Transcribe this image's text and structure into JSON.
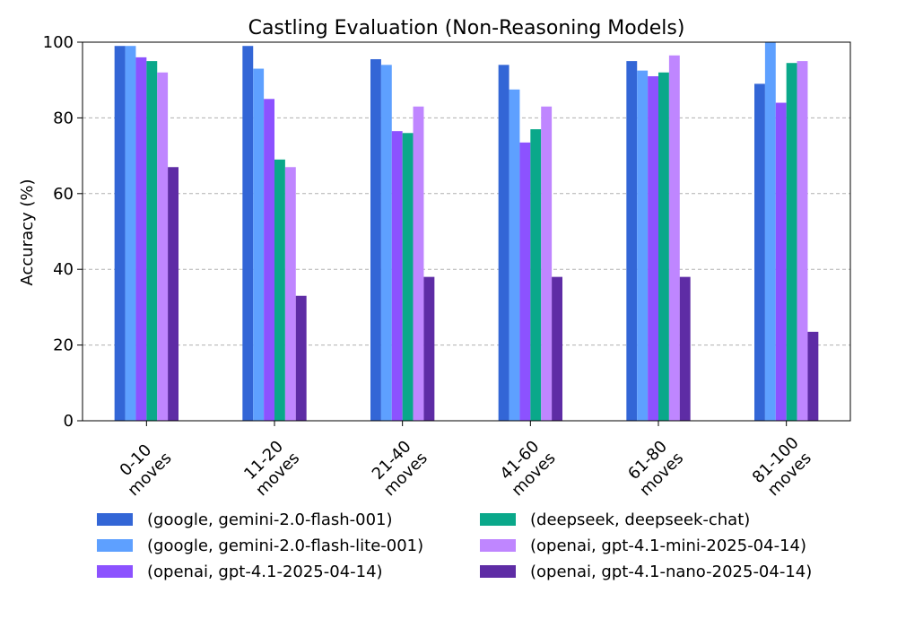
{
  "chart_data": {
    "type": "bar",
    "title": "Castling Evaluation (Non-Reasoning Models)",
    "xlabel": "",
    "ylabel": "Accuracy (%)",
    "ylim": [
      0,
      100
    ],
    "yticks": [
      0,
      20,
      40,
      60,
      80,
      100
    ],
    "grid": "y-dashed",
    "legend_position": "bottom",
    "categories": [
      [
        "0-10",
        "moves"
      ],
      [
        "11-20",
        "moves"
      ],
      [
        "21-40",
        "moves"
      ],
      [
        "41-60",
        "moves"
      ],
      [
        "61-80",
        "moves"
      ],
      [
        "81-100",
        "moves"
      ]
    ],
    "series": [
      {
        "name": "(google, gemini-2.0-flash-001)",
        "color": "#3366d6",
        "values": [
          99,
          99,
          95.5,
          94,
          95,
          89
        ]
      },
      {
        "name": "(google, gemini-2.0-flash-lite-001)",
        "color": "#5ea0ff",
        "values": [
          99,
          93,
          94,
          87.5,
          92.5,
          100
        ]
      },
      {
        "name": "(openai, gpt-4.1-2025-04-14)",
        "color": "#8c52ff",
        "values": [
          96,
          85,
          76.5,
          73.5,
          91,
          84
        ]
      },
      {
        "name": "(deepseek, deepseek-chat)",
        "color": "#0aa88a",
        "values": [
          95,
          69,
          76,
          77,
          92,
          94.5
        ]
      },
      {
        "name": "(openai, gpt-4.1-mini-2025-04-14)",
        "color": "#bf86ff",
        "values": [
          92,
          67,
          83,
          83,
          96.5,
          95
        ]
      },
      {
        "name": "(openai, gpt-4.1-nano-2025-04-14)",
        "color": "#5e2ca5",
        "values": [
          67,
          33,
          38,
          38,
          38,
          23.5
        ]
      }
    ]
  }
}
